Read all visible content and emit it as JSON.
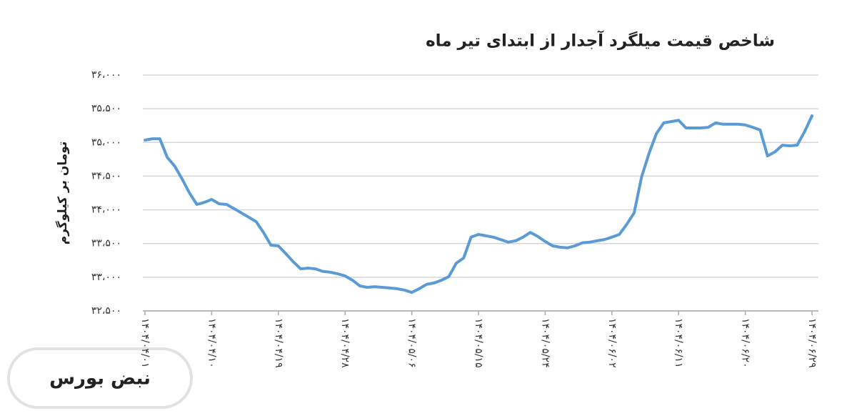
{
  "chart_data": {
    "type": "line",
    "title": "شاخص قیمت میلگرد آجدار از ابتدای تیر ماه",
    "y_label": "تومان بر کیلوگرم",
    "categories": [
      "۱۴۰۴/۰۴/۰۱",
      null,
      null,
      null,
      null,
      null,
      null,
      null,
      null,
      "۱۴۰۴/۰۴/۱۰",
      null,
      null,
      null,
      null,
      null,
      null,
      null,
      null,
      "۱۴۰۴/۰۴/۱۹",
      null,
      null,
      null,
      null,
      null,
      null,
      null,
      null,
      "۱۴۰۴/۰۴/۲۸",
      null,
      null,
      null,
      null,
      null,
      null,
      null,
      null,
      "۱۴۰۴/۰۵/۰۶",
      null,
      null,
      null,
      null,
      null,
      null,
      null,
      null,
      "۱۴۰۴/۰۵/۱۵",
      null,
      null,
      null,
      null,
      null,
      null,
      null,
      null,
      "۱۴۰۴/۰۵/۲۴",
      null,
      null,
      null,
      null,
      null,
      null,
      null,
      null,
      "۱۴۰۴/۰۶/۰۲",
      null,
      null,
      null,
      null,
      null,
      null,
      null,
      null,
      "۱۴۰۴/۰۶/۱۱",
      null,
      null,
      null,
      null,
      null,
      null,
      null,
      null,
      "۱۴۰۴/۰۶/۲۰",
      null,
      null,
      null,
      null,
      null,
      null,
      null,
      null,
      "۱۴۰۴/۰۶/۲۹"
    ],
    "values": [
      35035,
      35055,
      35055,
      34780,
      34650,
      34460,
      34250,
      34080,
      34110,
      34155,
      34090,
      34080,
      34020,
      33955,
      33890,
      33825,
      33665,
      33475,
      33465,
      33350,
      33230,
      33125,
      33135,
      33125,
      33085,
      33075,
      33050,
      33020,
      32955,
      32870,
      32850,
      32860,
      32850,
      32840,
      32830,
      32810,
      32775,
      32830,
      32895,
      32915,
      32955,
      33010,
      33210,
      33285,
      33595,
      33635,
      33615,
      33595,
      33560,
      33520,
      33540,
      33595,
      33665,
      33605,
      33530,
      33465,
      33445,
      33435,
      33465,
      33510,
      33520,
      33540,
      33560,
      33595,
      33635,
      33785,
      33955,
      34485,
      34835,
      35130,
      35290,
      35310,
      35330,
      35215,
      35215,
      35215,
      35225,
      35290,
      35270,
      35270,
      35270,
      35260,
      35225,
      35185,
      34800,
      34860,
      34960,
      34950,
      34960,
      35160,
      35395
    ],
    "color": "#5b9bd5",
    "ylim": [
      32500,
      36000
    ],
    "yticks": [
      {
        "value": 32500,
        "label": "۳۲،۵۰۰"
      },
      {
        "value": 33000,
        "label": "۳۳،۰۰۰"
      },
      {
        "value": 33500,
        "label": "۳۳،۵۰۰"
      },
      {
        "value": 34000,
        "label": "۳۴،۰۰۰"
      },
      {
        "value": 34500,
        "label": "۳۴،۵۰۰"
      },
      {
        "value": 35000,
        "label": "۳۵،۰۰۰"
      },
      {
        "value": 35500,
        "label": "۳۵،۵۰۰"
      },
      {
        "value": 36000,
        "label": "۳۶،۰۰۰"
      }
    ],
    "grid": true
  },
  "logo": "نبض بورس"
}
